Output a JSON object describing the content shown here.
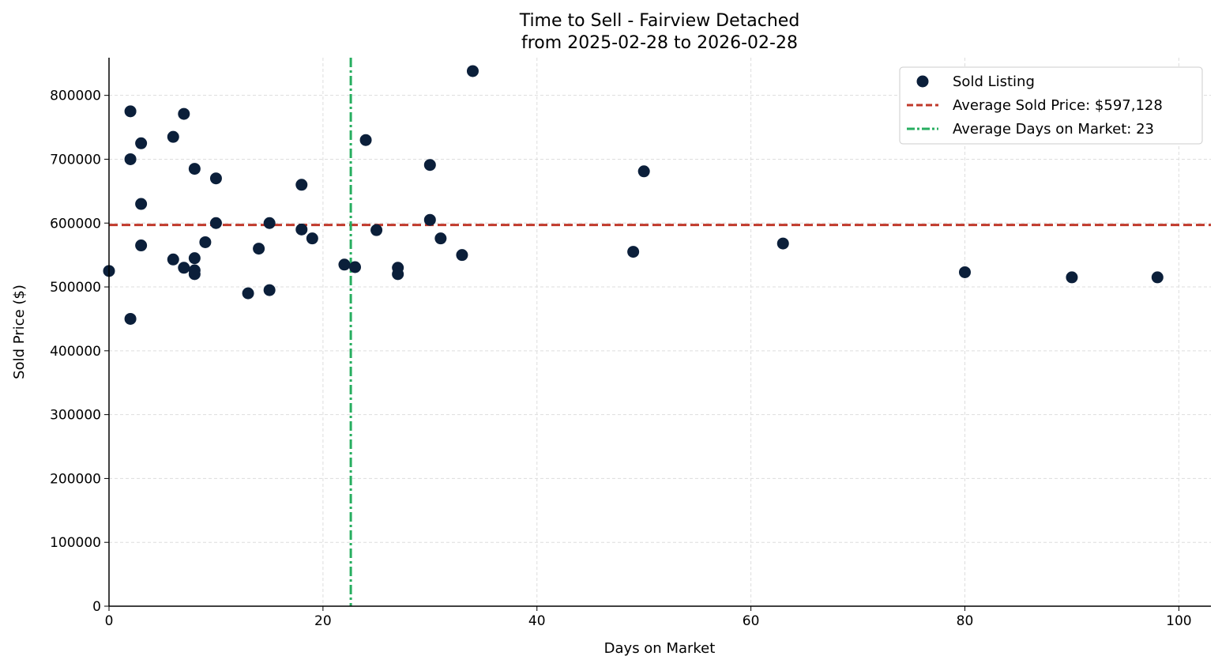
{
  "chart_data": {
    "type": "scatter",
    "title": "Time to Sell - Fairview Detached",
    "subtitle": "from 2025-02-28 to 2026-02-28",
    "xlabel": "Days on Market",
    "ylabel": "Sold Price ($)",
    "xlim": [
      0,
      103
    ],
    "ylim": [
      0,
      859000
    ],
    "xticks": [
      0,
      20,
      40,
      60,
      80,
      100
    ],
    "yticks": [
      0,
      100000,
      200000,
      300000,
      400000,
      500000,
      600000,
      700000,
      800000
    ],
    "grid": true,
    "legend_position": "top-right",
    "colors": {
      "points": "#0b1f3a",
      "avg_price": "#c0392b",
      "avg_days": "#27ae60"
    },
    "series": [
      {
        "name": "Sold Listing",
        "points": [
          [
            0,
            525000
          ],
          [
            2,
            775000
          ],
          [
            2,
            700000
          ],
          [
            2,
            450000
          ],
          [
            3,
            725000
          ],
          [
            3,
            630000
          ],
          [
            3,
            565000
          ],
          [
            6,
            735000
          ],
          [
            6,
            543000
          ],
          [
            7,
            771000
          ],
          [
            7,
            530000
          ],
          [
            8,
            685000
          ],
          [
            8,
            545000
          ],
          [
            8,
            526000
          ],
          [
            8,
            520000
          ],
          [
            9,
            570000
          ],
          [
            10,
            670000
          ],
          [
            10,
            600000
          ],
          [
            13,
            490000
          ],
          [
            14,
            560000
          ],
          [
            15,
            600000
          ],
          [
            15,
            495000
          ],
          [
            18,
            660000
          ],
          [
            18,
            590000
          ],
          [
            19,
            576000
          ],
          [
            22,
            535000
          ],
          [
            23,
            531000
          ],
          [
            24,
            730000
          ],
          [
            25,
            589000
          ],
          [
            27,
            530000
          ],
          [
            27,
            520000
          ],
          [
            30,
            691000
          ],
          [
            30,
            605000
          ],
          [
            31,
            576000
          ],
          [
            33,
            550000
          ],
          [
            34,
            838000
          ],
          [
            49,
            555000
          ],
          [
            50,
            681000
          ],
          [
            63,
            568000
          ],
          [
            80,
            523000
          ],
          [
            90,
            515000
          ],
          [
            98,
            515000
          ]
        ]
      }
    ],
    "average_price": {
      "label": "Average Sold Price: $597,128",
      "value": 597128
    },
    "average_days": {
      "label": "Average Days on Market: 23",
      "value": 22.6
    }
  }
}
